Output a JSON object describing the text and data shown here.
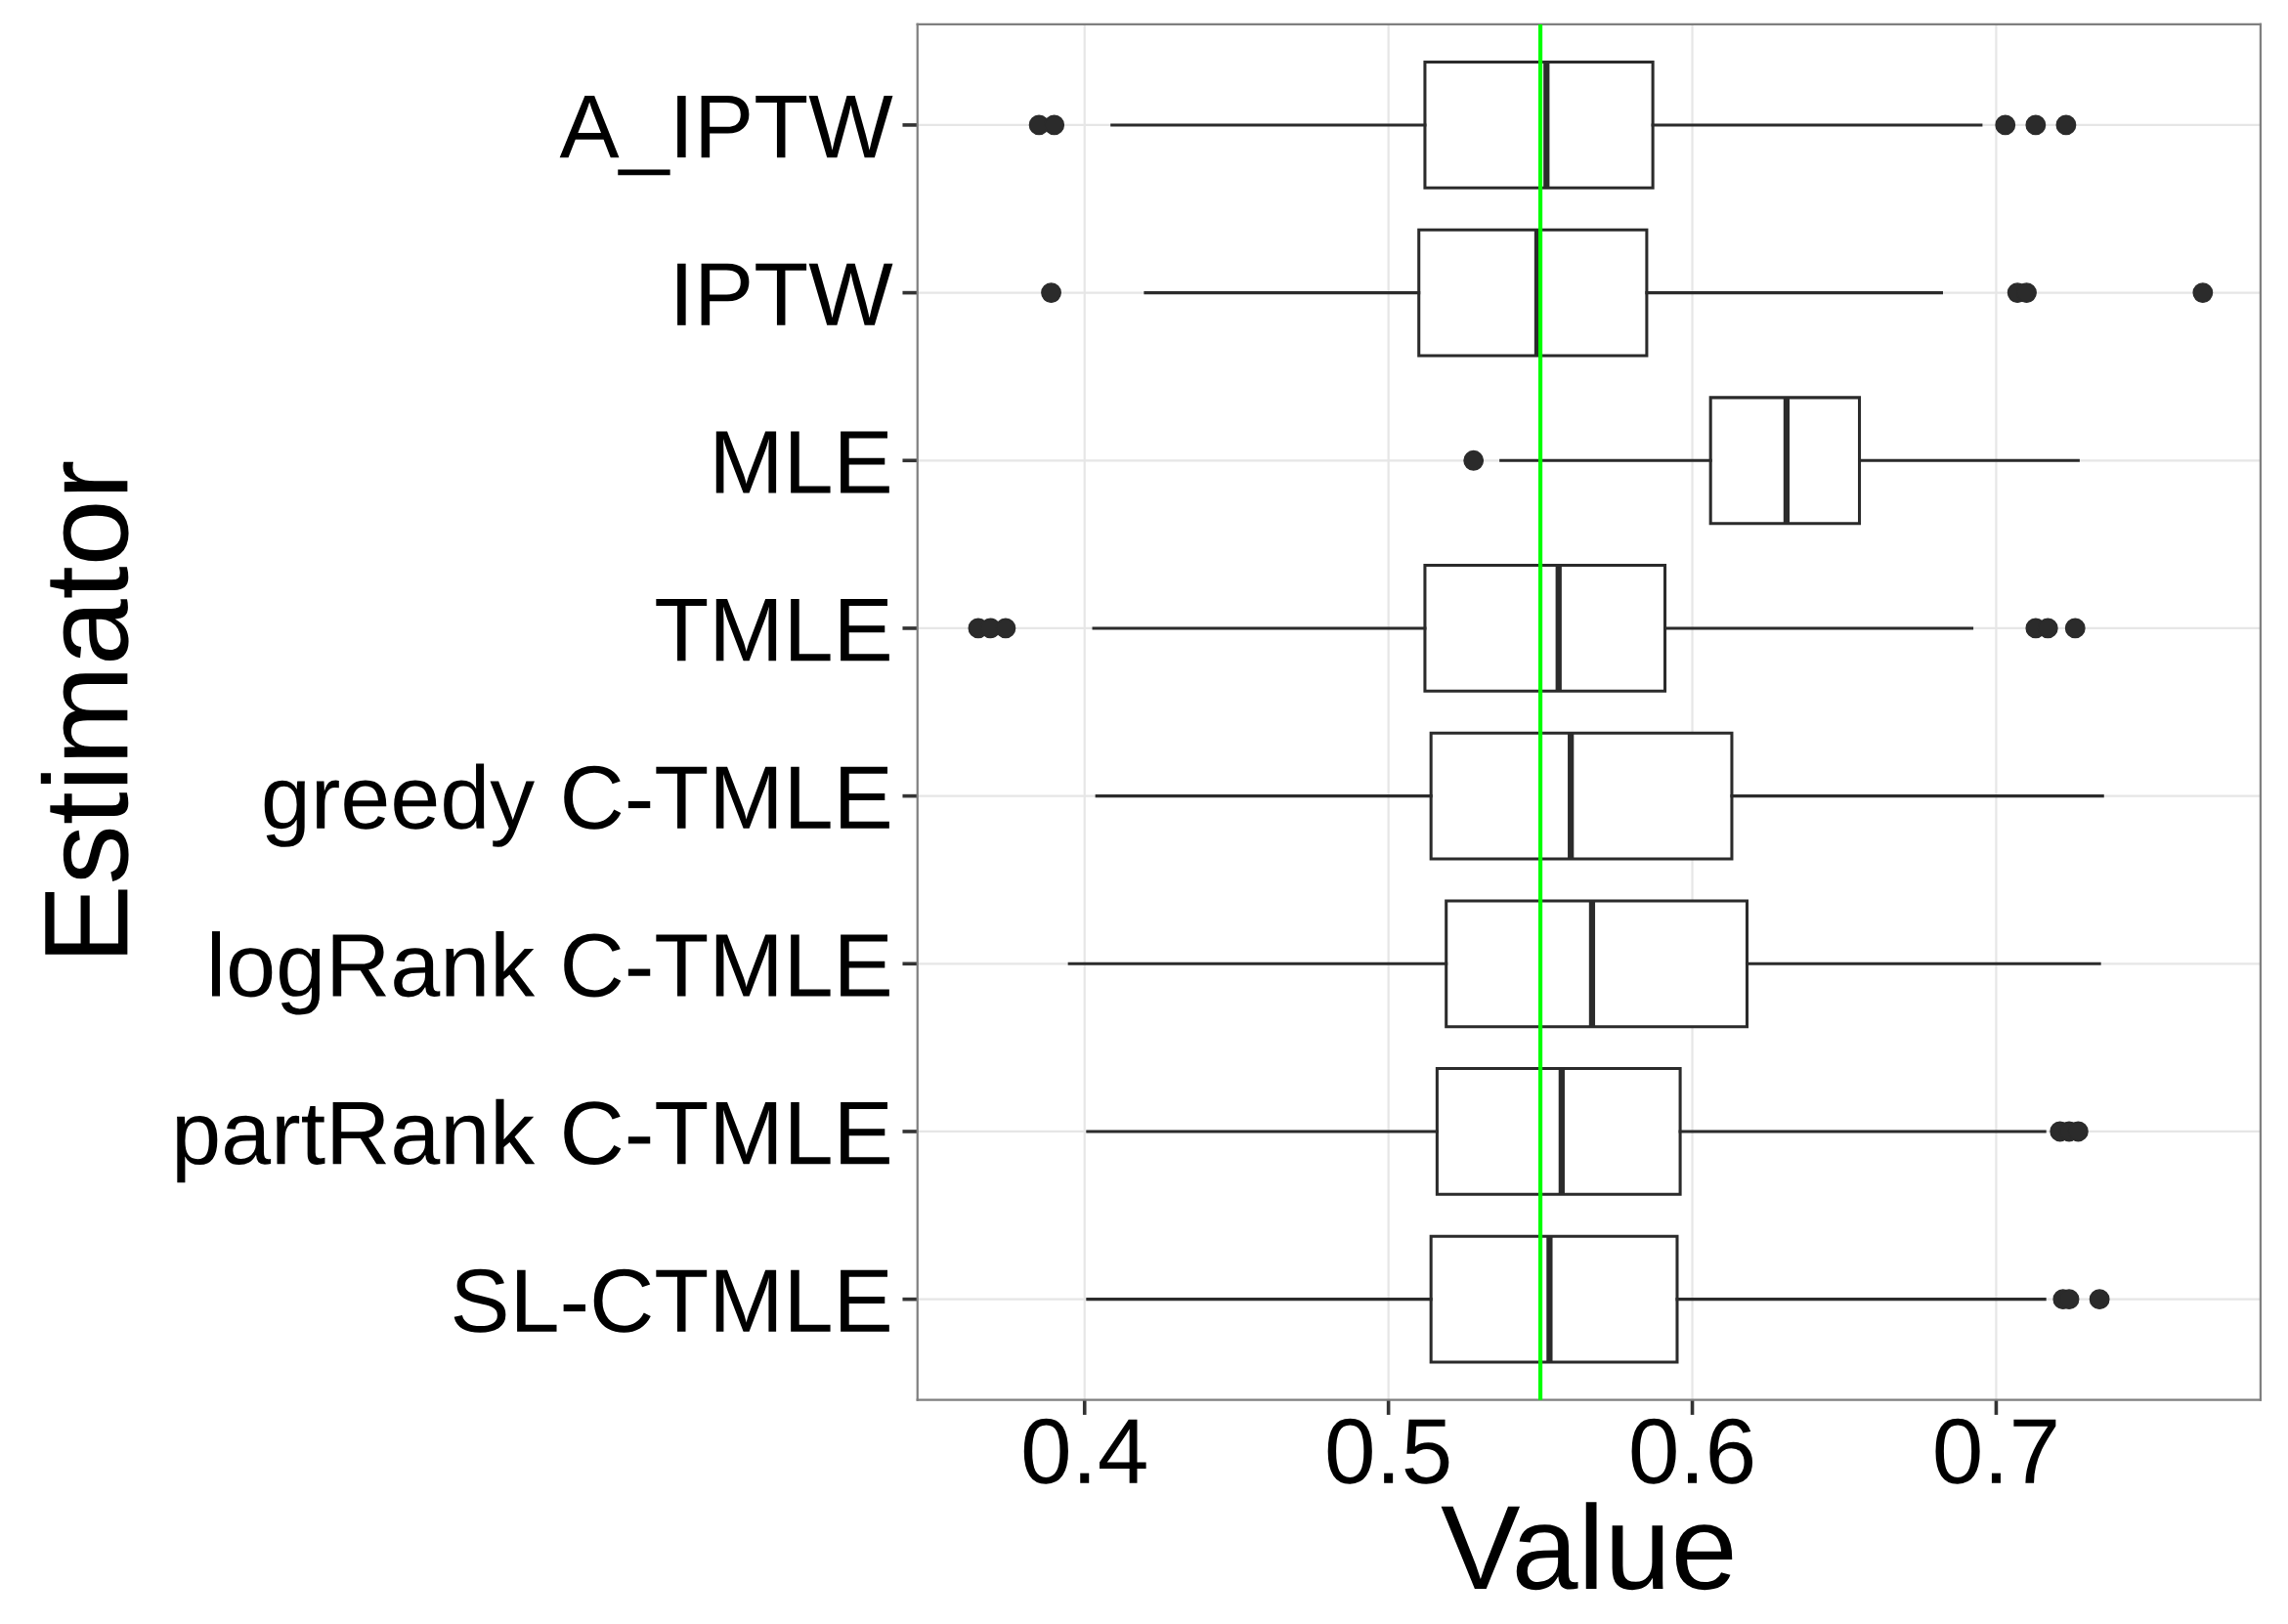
{
  "chart_data": {
    "type": "box",
    "orientation": "horizontal",
    "categories": [
      "A_IPTW",
      "IPTW",
      "MLE",
      "TMLE",
      "greedy C-TMLE",
      "logRank C-TMLE",
      "partRank C-TMLE",
      "SL-CTMLE"
    ],
    "series": [
      {
        "color": "#2b2b2b",
        "boxes": [
          {
            "low": 0.409,
            "q1": 0.512,
            "median": 0.552,
            "q3": 0.587,
            "high": 0.695,
            "outliers": [
              0.385,
              0.39,
              0.703,
              0.713,
              0.723
            ]
          },
          {
            "low": 0.42,
            "q1": 0.51,
            "median": 0.549,
            "q3": 0.585,
            "high": 0.682,
            "outliers": [
              0.389,
              0.707,
              0.71,
              0.768
            ]
          },
          {
            "low": 0.537,
            "q1": 0.606,
            "median": 0.631,
            "q3": 0.655,
            "high": 0.727,
            "outliers": [
              0.528
            ]
          },
          {
            "low": 0.403,
            "q1": 0.512,
            "median": 0.556,
            "q3": 0.591,
            "high": 0.692,
            "outliers": [
              0.365,
              0.369,
              0.374,
              0.713,
              0.717,
              0.726
            ]
          },
          {
            "low": 0.404,
            "q1": 0.514,
            "median": 0.56,
            "q3": 0.613,
            "high": 0.735
          },
          {
            "low": 0.395,
            "q1": 0.519,
            "median": 0.567,
            "q3": 0.618,
            "high": 0.734
          },
          {
            "low": 0.401,
            "q1": 0.516,
            "median": 0.557,
            "q3": 0.596,
            "high": 0.716,
            "outliers": [
              0.721,
              0.724,
              0.727
            ]
          },
          {
            "low": 0.401,
            "q1": 0.514,
            "median": 0.553,
            "q3": 0.595,
            "high": 0.716,
            "outliers": [
              0.722,
              0.724,
              0.734
            ]
          }
        ]
      }
    ],
    "xlabel": "Value",
    "ylabel": "Estimator",
    "xlim": [
      0.345,
      0.787
    ],
    "xticks": [
      0.4,
      0.5,
      0.6,
      0.7
    ],
    "ref_lines": [
      {
        "axis": "x",
        "value": 0.55,
        "color": "#00ff00"
      }
    ],
    "grid": true
  }
}
